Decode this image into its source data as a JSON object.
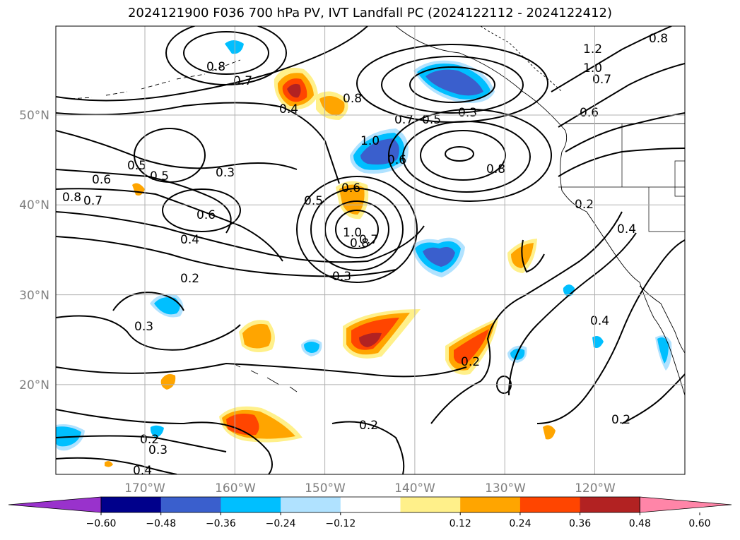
{
  "title": "2024121900 F036 700 hPa PV, IVT Landfall PC (2024122112 - 2024122412)",
  "map": {
    "lon_ticks": [
      {
        "lon": -170,
        "label": "170°W"
      },
      {
        "lon": -160,
        "label": "160°W"
      },
      {
        "lon": -150,
        "label": "150°W"
      },
      {
        "lon": -140,
        "label": "140°W"
      },
      {
        "lon": -130,
        "label": "130°W"
      },
      {
        "lon": -120,
        "label": "120°W"
      }
    ],
    "lat_ticks": [
      {
        "lat": 50,
        "label": "50°N"
      },
      {
        "lat": 40,
        "label": "40°N"
      },
      {
        "lat": 30,
        "label": "30°N"
      },
      {
        "lat": 20,
        "label": "20°N"
      }
    ],
    "gridline_color": "#b0b0b0",
    "tick_label_color": "#808080"
  },
  "contour_labels": [
    "0.2",
    "0.3",
    "0.4",
    "0.5",
    "0.6",
    "0.7",
    "0.8",
    "1.0",
    "1.2"
  ],
  "colorbar": {
    "ticks": [
      "−0.60",
      "−0.48",
      "−0.36",
      "−0.24",
      "−0.12",
      "0.12",
      "0.24",
      "0.36",
      "0.48",
      "0.60"
    ],
    "colors": [
      "#9932cc",
      "#00008b",
      "#3a5fcd",
      "#00bfff",
      "#b0e2ff",
      "#ffffff",
      "#fff08a",
      "#ffa500",
      "#ff4500",
      "#b22222",
      "#ff85a8"
    ],
    "extend": "both"
  }
}
